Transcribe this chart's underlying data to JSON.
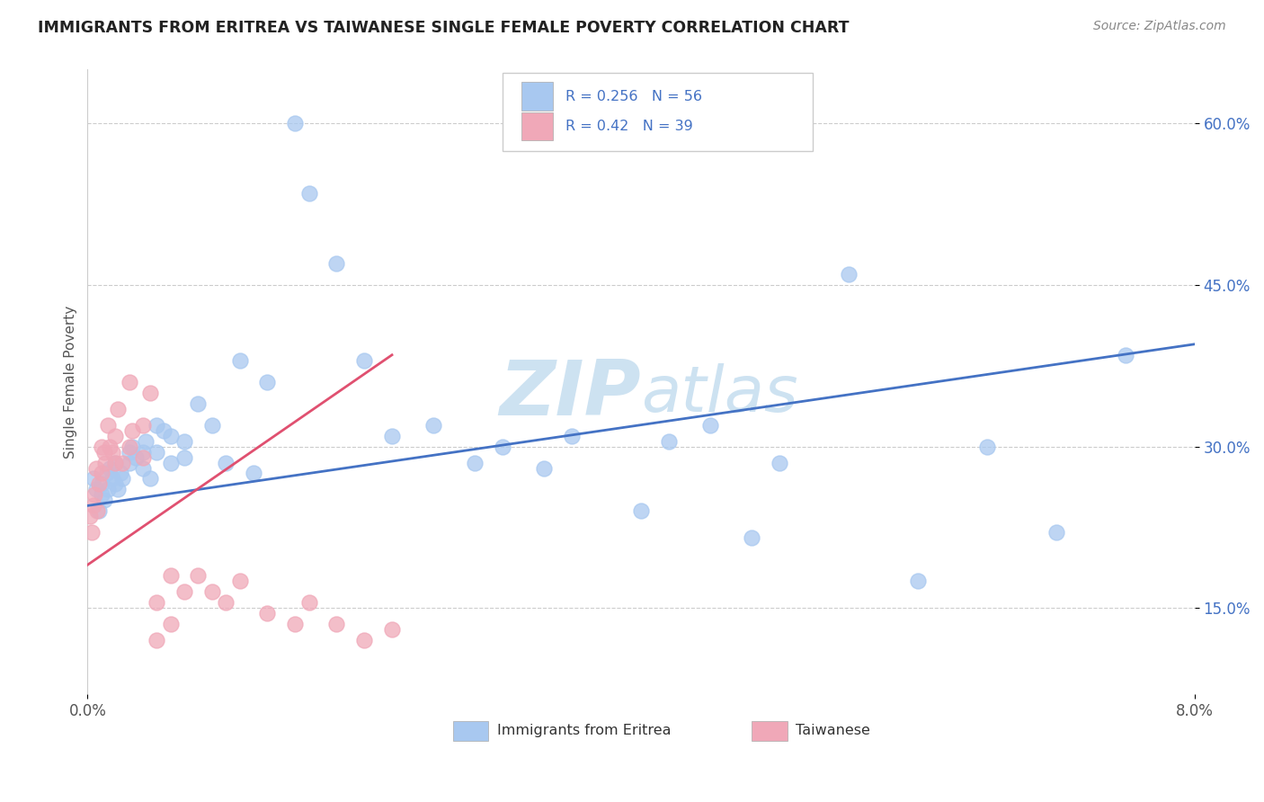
{
  "title": "IMMIGRANTS FROM ERITREA VS TAIWANESE SINGLE FEMALE POVERTY CORRELATION CHART",
  "source": "Source: ZipAtlas.com",
  "ylabel": "Single Female Poverty",
  "ytick_vals": [
    0.15,
    0.3,
    0.45,
    0.6
  ],
  "xmin": 0.0,
  "xmax": 0.08,
  "ymin": 0.07,
  "ymax": 0.65,
  "legend_labels": [
    "Immigrants from Eritrea",
    "Taiwanese"
  ],
  "R_blue": 0.256,
  "N_blue": 56,
  "R_pink": 0.42,
  "N_pink": 39,
  "color_blue": "#a8c8f0",
  "color_pink": "#f0a8b8",
  "color_blue_text": "#4472c4",
  "color_pink_line": "#e05070",
  "watermark_color": "#c8dff0",
  "blue_scatter_x": [
    0.0004,
    0.0006,
    0.0008,
    0.001,
    0.001,
    0.0012,
    0.0014,
    0.0015,
    0.0016,
    0.0018,
    0.002,
    0.002,
    0.0022,
    0.0024,
    0.0025,
    0.003,
    0.003,
    0.0032,
    0.0035,
    0.004,
    0.004,
    0.0042,
    0.0045,
    0.005,
    0.005,
    0.0055,
    0.006,
    0.006,
    0.007,
    0.007,
    0.008,
    0.009,
    0.01,
    0.011,
    0.012,
    0.013,
    0.015,
    0.016,
    0.018,
    0.02,
    0.022,
    0.025,
    0.028,
    0.03,
    0.033,
    0.035,
    0.04,
    0.042,
    0.045,
    0.048,
    0.05,
    0.055,
    0.06,
    0.065,
    0.07,
    0.075
  ],
  "blue_scatter_y": [
    0.27,
    0.26,
    0.24,
    0.255,
    0.265,
    0.25,
    0.275,
    0.26,
    0.28,
    0.27,
    0.265,
    0.285,
    0.26,
    0.275,
    0.27,
    0.295,
    0.285,
    0.3,
    0.29,
    0.28,
    0.295,
    0.305,
    0.27,
    0.295,
    0.32,
    0.315,
    0.285,
    0.31,
    0.305,
    0.29,
    0.34,
    0.32,
    0.285,
    0.38,
    0.275,
    0.36,
    0.6,
    0.535,
    0.47,
    0.38,
    0.31,
    0.32,
    0.285,
    0.3,
    0.28,
    0.31,
    0.24,
    0.305,
    0.32,
    0.215,
    0.285,
    0.46,
    0.175,
    0.3,
    0.22,
    0.385
  ],
  "pink_scatter_x": [
    0.0002,
    0.0003,
    0.0004,
    0.0005,
    0.0006,
    0.0007,
    0.0008,
    0.001,
    0.001,
    0.0012,
    0.0013,
    0.0015,
    0.0016,
    0.0018,
    0.002,
    0.002,
    0.0022,
    0.0025,
    0.003,
    0.003,
    0.0032,
    0.004,
    0.004,
    0.0045,
    0.005,
    0.005,
    0.006,
    0.006,
    0.007,
    0.008,
    0.009,
    0.01,
    0.011,
    0.013,
    0.015,
    0.016,
    0.018,
    0.02,
    0.022
  ],
  "pink_scatter_y": [
    0.235,
    0.22,
    0.245,
    0.255,
    0.28,
    0.24,
    0.265,
    0.3,
    0.275,
    0.295,
    0.285,
    0.32,
    0.3,
    0.295,
    0.31,
    0.285,
    0.335,
    0.285,
    0.36,
    0.3,
    0.315,
    0.29,
    0.32,
    0.35,
    0.12,
    0.155,
    0.135,
    0.18,
    0.165,
    0.18,
    0.165,
    0.155,
    0.175,
    0.145,
    0.135,
    0.155,
    0.135,
    0.12,
    0.13
  ],
  "blue_trend_y0": 0.245,
  "blue_trend_y1": 0.395,
  "pink_trend_x0": 0.0,
  "pink_trend_x1": 0.022,
  "pink_trend_y0": 0.19,
  "pink_trend_y1": 0.385
}
